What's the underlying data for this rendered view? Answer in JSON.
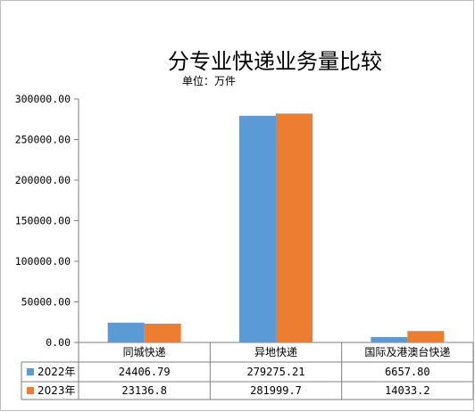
{
  "chart_data": {
    "type": "bar",
    "title": "分专业快递业务量比较",
    "subtitle": "单位：万件",
    "categories": [
      "同城快递",
      "异地快递",
      "国际及港澳台快递"
    ],
    "series": [
      {
        "name": "2022年",
        "values": [
          24406.79,
          279275.21,
          6657.8
        ],
        "labels": [
          "24406.79",
          "279275.21",
          "6657.80"
        ],
        "color": "#5B9BD5"
      },
      {
        "name": "2023年",
        "values": [
          23136.8,
          281999.7,
          14033.2
        ],
        "labels": [
          "23136.8",
          "281999.7",
          "14033.2"
        ],
        "color": "#ED7D31"
      }
    ],
    "y_ticks": [
      "0.00",
      "50000.00",
      "100000.00",
      "150000.00",
      "200000.00",
      "250000.00",
      "300000.00"
    ],
    "ylim": [
      0,
      300000
    ],
    "grid": false,
    "legend": "data-table"
  }
}
